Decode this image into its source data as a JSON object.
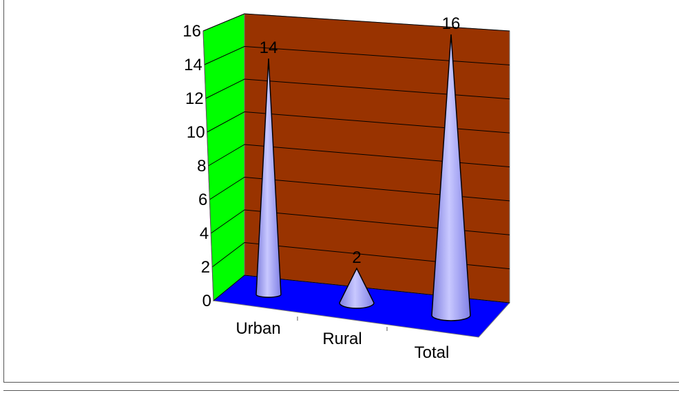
{
  "chart_data": {
    "type": "cone",
    "categories": [
      "Urban",
      "Rural",
      "Total"
    ],
    "values": [
      14,
      2,
      16
    ],
    "color": "#9999ff",
    "ylim": [
      0,
      16
    ],
    "yticks": [
      0,
      2,
      4,
      6,
      8,
      10,
      12,
      14,
      16
    ],
    "grid": true,
    "wall_color": "#993300",
    "side_wall_color": "#00ff00",
    "floor_color": "#0000ff"
  }
}
